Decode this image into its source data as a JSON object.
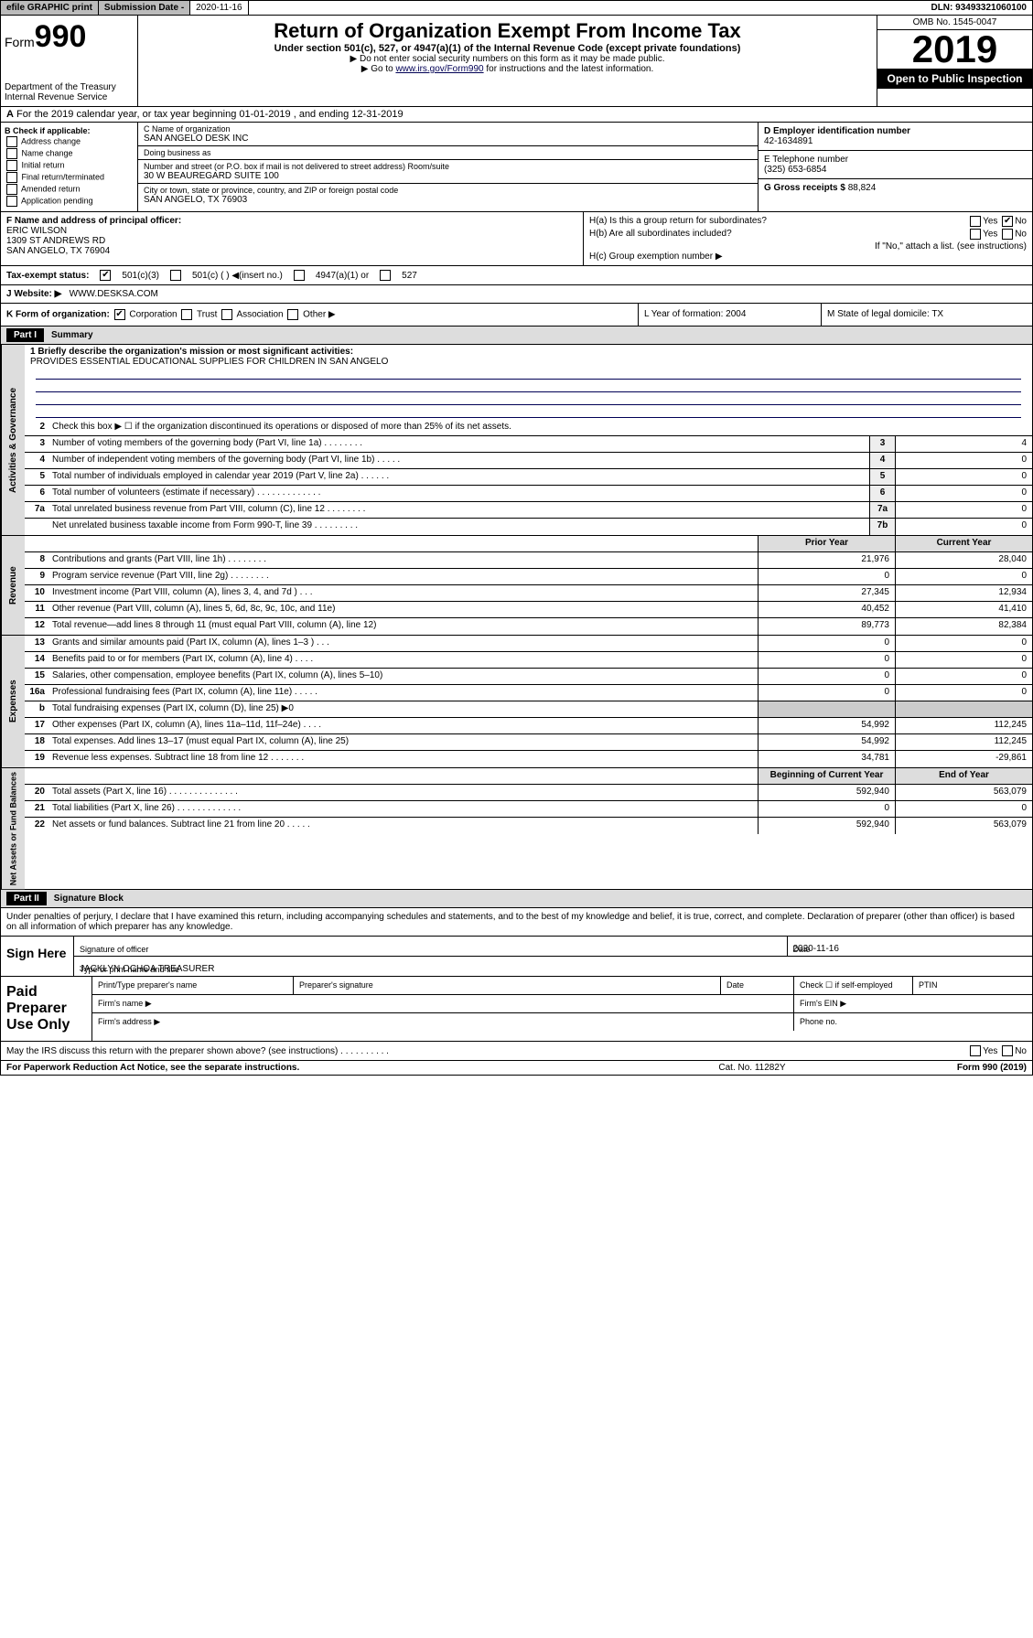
{
  "top": {
    "efile": "efile GRAPHIC print",
    "sub_date_lbl": "Submission Date - ",
    "sub_date": "2020-11-16",
    "dln": "DLN: 93493321060100"
  },
  "header": {
    "form_word": "Form",
    "form_num": "990",
    "dept": "Department of the Treasury\nInternal Revenue Service",
    "title": "Return of Organization Exempt From Income Tax",
    "sub": "Under section 501(c), 527, or 4947(a)(1) of the Internal Revenue Code (except private foundations)",
    "note1": "▶ Do not enter social security numbers on this form as it may be made public.",
    "note2_pre": "▶ Go to ",
    "note2_link": "www.irs.gov/Form990",
    "note2_post": " for instructions and the latest information.",
    "omb": "OMB No. 1545-0047",
    "year": "2019",
    "open": "Open to Public Inspection"
  },
  "a": {
    "text": "For the 2019 calendar year, or tax year beginning 01-01-2019     , and ending 12-31-2019"
  },
  "b": {
    "hdr": "B Check if applicable:",
    "opts": [
      "Address change",
      "Name change",
      "Initial return",
      "Final return/terminated",
      "Amended return",
      "Application pending"
    ]
  },
  "c": {
    "name_lbl": "C Name of organization",
    "name": "SAN ANGELO DESK INC",
    "dba_lbl": "Doing business as",
    "dba": "",
    "addr_lbl": "Number and street (or P.O. box if mail is not delivered to street address)        Room/suite",
    "addr": "30 W BEAUREGARD SUITE 100",
    "city_lbl": "City or town, state or province, country, and ZIP or foreign postal code",
    "city": "SAN ANGELO, TX  76903"
  },
  "d": {
    "ein_lbl": "D Employer identification number",
    "ein": "42-1634891",
    "tel_lbl": "E Telephone number",
    "tel": "(325) 653-6854",
    "gross_lbl": "G Gross receipts $ ",
    "gross": "88,824"
  },
  "f": {
    "lbl": "F  Name and address of principal officer:",
    "name": "ERIC WILSON",
    "addr1": "1309 ST ANDREWS RD",
    "addr2": "SAN ANGELO, TX  76904"
  },
  "h": {
    "a": "H(a)  Is this a group return for subordinates?",
    "b": "H(b)  Are all subordinates included?",
    "b_note": "If \"No,\" attach a list. (see instructions)",
    "c": "H(c)  Group exemption number ▶"
  },
  "i": {
    "lbl": "Tax-exempt status:",
    "o1": "501(c)(3)",
    "o2": "501(c) (  ) ◀(insert no.)",
    "o3": "4947(a)(1) or",
    "o4": "527"
  },
  "j": {
    "lbl": "J   Website: ▶",
    "val": "WWW.DESKSA.COM"
  },
  "k": {
    "lbl": "K Form of organization:",
    "opts": [
      "Corporation",
      "Trust",
      "Association",
      "Other ▶"
    ],
    "l": "L Year of formation: 2004",
    "m": "M State of legal domicile: TX"
  },
  "part1": {
    "label": "Part I",
    "title": "Summary"
  },
  "gov": {
    "label": "Activities & Governance",
    "l1": "1  Briefly describe the organization's mission or most significant activities:",
    "mission": "PROVIDES ESSENTIAL EDUCATIONAL SUPPLIES FOR CHILDREN IN SAN ANGELO",
    "l2": "Check this box ▶ ☐  if the organization discontinued its operations or disposed of more than 25% of its net assets.",
    "rows": [
      {
        "n": "3",
        "t": "Number of voting members of the governing body (Part VI, line 1a)  .   .   .   .   .   .   .   .",
        "b": "3",
        "v": "4"
      },
      {
        "n": "4",
        "t": "Number of independent voting members of the governing body (Part VI, line 1b)   .   .   .   .   .",
        "b": "4",
        "v": "0"
      },
      {
        "n": "5",
        "t": "Total number of individuals employed in calendar year 2019 (Part V, line 2a)   .   .   .   .   .   .",
        "b": "5",
        "v": "0"
      },
      {
        "n": "6",
        "t": "Total number of volunteers (estimate if necessary)  .   .   .   .   .   .   .   .   .   .   .   .   .",
        "b": "6",
        "v": "0"
      },
      {
        "n": "7a",
        "t": "Total unrelated business revenue from Part VIII, column (C), line 12  .   .   .   .   .   .   .   .",
        "b": "7a",
        "v": "0"
      },
      {
        "n": "",
        "t": "Net unrelated business taxable income from Form 990-T, line 39  .   .   .   .   .   .   .   .   .",
        "b": "7b",
        "v": "0"
      }
    ]
  },
  "rev": {
    "label": "Revenue",
    "hdr_prior": "Prior Year",
    "hdr_curr": "Current Year",
    "rows": [
      {
        "n": "8",
        "t": "Contributions and grants (Part VIII, line 1h)   .   .   .   .   .   .   .   .",
        "p": "21,976",
        "c": "28,040"
      },
      {
        "n": "9",
        "t": "Program service revenue (Part VIII, line 2g)   .   .   .   .   .   .   .   .",
        "p": "0",
        "c": "0"
      },
      {
        "n": "10",
        "t": "Investment income (Part VIII, column (A), lines 3, 4, and 7d )   .   .   .",
        "p": "27,345",
        "c": "12,934"
      },
      {
        "n": "11",
        "t": "Other revenue (Part VIII, column (A), lines 5, 6d, 8c, 9c, 10c, and 11e)",
        "p": "40,452",
        "c": "41,410"
      },
      {
        "n": "12",
        "t": "Total revenue—add lines 8 through 11 (must equal Part VIII, column (A), line 12)",
        "p": "89,773",
        "c": "82,384"
      }
    ]
  },
  "exp": {
    "label": "Expenses",
    "rows": [
      {
        "n": "13",
        "t": "Grants and similar amounts paid (Part IX, column (A), lines 1–3 )   .   .   .",
        "p": "0",
        "c": "0"
      },
      {
        "n": "14",
        "t": "Benefits paid to or for members (Part IX, column (A), line 4)   .   .   .   .",
        "p": "0",
        "c": "0"
      },
      {
        "n": "15",
        "t": "Salaries, other compensation, employee benefits (Part IX, column (A), lines 5–10)",
        "p": "0",
        "c": "0"
      },
      {
        "n": "16a",
        "t": "Professional fundraising fees (Part IX, column (A), line 11e)   .   .   .   .   .",
        "p": "0",
        "c": "0"
      },
      {
        "n": "b",
        "t": "Total fundraising expenses (Part IX, column (D), line 25) ▶0",
        "p": "",
        "c": "",
        "shade": true
      },
      {
        "n": "17",
        "t": "Other expenses (Part IX, column (A), lines 11a–11d, 11f–24e)   .   .   .   .",
        "p": "54,992",
        "c": "112,245"
      },
      {
        "n": "18",
        "t": "Total expenses. Add lines 13–17 (must equal Part IX, column (A), line 25)",
        "p": "54,992",
        "c": "112,245"
      },
      {
        "n": "19",
        "t": "Revenue less expenses. Subtract line 18 from line 12   .   .   .   .   .   .   .",
        "p": "34,781",
        "c": "-29,861"
      }
    ]
  },
  "net": {
    "label": "Net Assets or Fund Balances",
    "hdr_beg": "Beginning of Current Year",
    "hdr_end": "End of Year",
    "rows": [
      {
        "n": "20",
        "t": "Total assets (Part X, line 16)   .   .   .   .   .   .   .   .   .   .   .   .   .   .",
        "p": "592,940",
        "c": "563,079"
      },
      {
        "n": "21",
        "t": "Total liabilities (Part X, line 26)   .   .   .   .   .   .   .   .   .   .   .   .   .",
        "p": "0",
        "c": "0"
      },
      {
        "n": "22",
        "t": "Net assets or fund balances. Subtract line 21 from line 20   .   .   .   .   .",
        "p": "592,940",
        "c": "563,079"
      }
    ]
  },
  "part2": {
    "label": "Part II",
    "title": "Signature Block"
  },
  "sig": {
    "decl": "Under penalties of perjury, I declare that I have examined this return, including accompanying schedules and statements, and to the best of my knowledge and belief, it is true, correct, and complete. Declaration of preparer (other than officer) is based on all information of which preparer has any knowledge.",
    "sign_here": "Sign Here",
    "sig_lbl": "Signature of officer",
    "date_lbl": "Date",
    "date": "2020-11-16",
    "name": "JACKLYN OCHOA  TREASURER",
    "name_lbl": "Type or print name and title"
  },
  "paid": {
    "label": "Paid Preparer Use Only",
    "r1": [
      "Print/Type preparer's name",
      "Preparer's signature",
      "Date",
      "Check ☐ if self-employed",
      "PTIN"
    ],
    "r2_lbl": "Firm's name  ▶",
    "r2_ein": "Firm's EIN ▶",
    "r3_lbl": "Firm's address ▶",
    "r3_phone": "Phone no."
  },
  "bottom": {
    "q": "May the IRS discuss this return with the preparer shown above? (see instructions)   .   .   .   .   .   .   .   .   .   .",
    "yes": "Yes",
    "no": "No"
  },
  "footer": {
    "pra": "For Paperwork Reduction Act Notice, see the separate instructions.",
    "cat": "Cat. No. 11282Y",
    "form": "Form 990 (2019)"
  }
}
